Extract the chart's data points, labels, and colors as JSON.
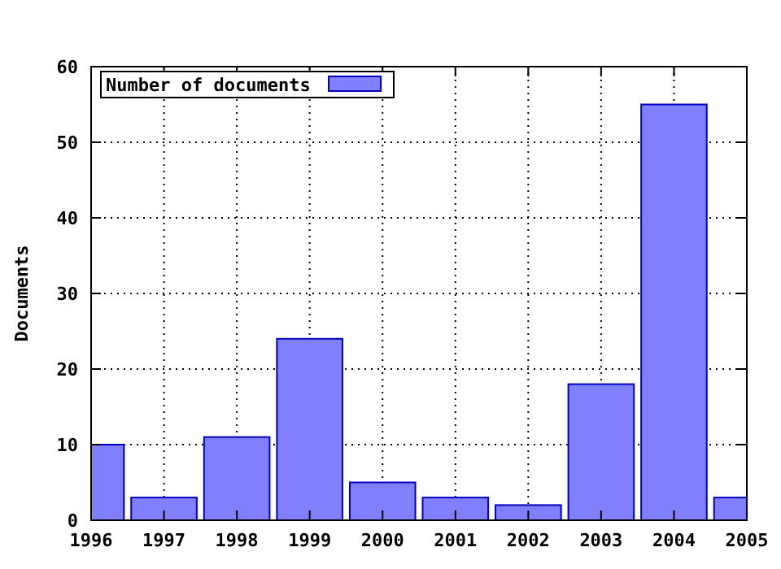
{
  "chart_data": {
    "type": "bar",
    "ylabel": "Documents",
    "x": [
      1996,
      1997,
      1998,
      1999,
      2000,
      2001,
      2002,
      2003,
      2004,
      2005
    ],
    "series": [
      {
        "name": "Number of documents",
        "color": "#8080ff",
        "values": [
          10,
          3,
          11,
          24,
          5,
          3,
          2,
          18,
          55,
          3
        ]
      }
    ],
    "xlim": [
      1996,
      2005
    ],
    "xticks": [
      1996,
      1997,
      1998,
      1999,
      2000,
      2001,
      2002,
      2003,
      2004,
      2005
    ],
    "ylim": [
      0,
      60
    ],
    "yticks": [
      0,
      10,
      20,
      30,
      40,
      50,
      60
    ],
    "grid": true,
    "legend": "top left"
  }
}
